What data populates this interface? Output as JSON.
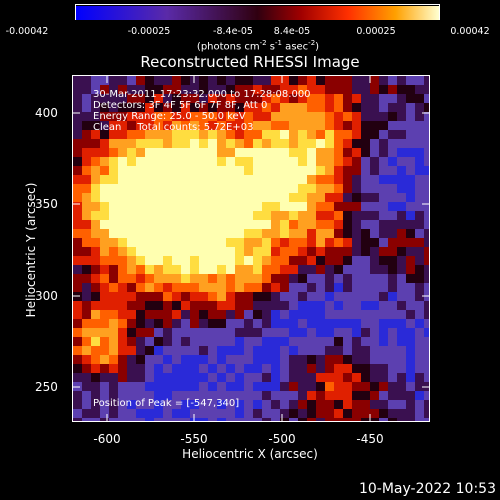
{
  "colorbar": {
    "tick_labels": [
      "-0.00042",
      "-0.00025",
      "-8.4e-05",
      "8.4e-05",
      "0.00025",
      "0.00042"
    ],
    "units": "(photons cm",
    "units_exp1": "-2",
    "units_mid": " s",
    "units_exp2": "-1",
    "units_mid2": " asec",
    "units_exp3": "-2",
    "units_end": ")"
  },
  "title": "Reconstructed RHESSI Image",
  "info": {
    "line1": "30-Mar-2011 17:23:32.000 to 17:28:08.000",
    "line2": "Detectors: 3F 4F 5F 6F 7F 8F, Att 0",
    "line3": "Energy Range: 25.0 - 50.0 keV",
    "line4": "Clean     Total counts: 5.72E+03",
    "peak": "Position of Peak = [-547,340]"
  },
  "axes": {
    "xlabel": "Heliocentric X (arcsec)",
    "ylabel": "Heliocentric Y (arcsec)",
    "xticks": [
      "-600",
      "-550",
      "-500",
      "-450"
    ],
    "yticks": [
      "400",
      "350",
      "300",
      "250"
    ]
  },
  "footer_date": "10-May-2022 10:53",
  "colors": {
    "background": "#000000",
    "foreground": "#ffffff"
  }
}
